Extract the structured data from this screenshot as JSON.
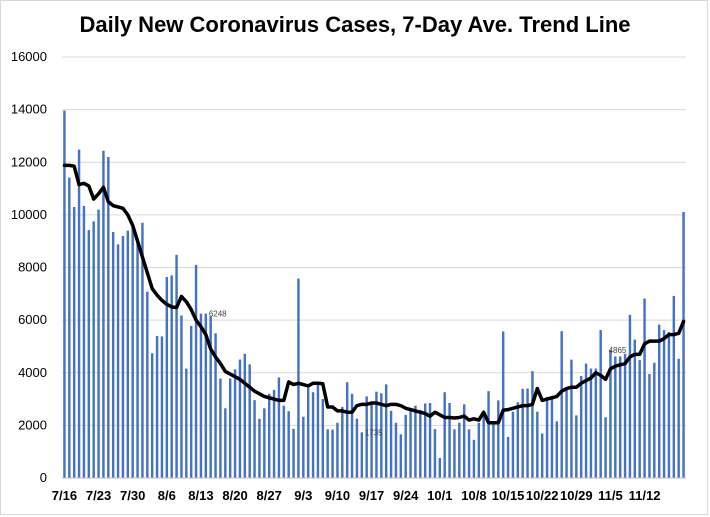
{
  "chart_data": {
    "type": "bar",
    "title": "Daily New Coronavirus Cases, 7-Day Ave. Trend Line",
    "xlabel": "",
    "ylabel": "",
    "ylim": [
      0,
      16000
    ],
    "yticks": [
      0,
      2000,
      4000,
      6000,
      8000,
      10000,
      12000,
      14000,
      16000
    ],
    "y_tick_labels": [
      "0",
      "2000",
      "4000",
      "6000",
      "8000",
      "10000",
      "12000",
      "14000",
      "16000"
    ],
    "x_tick_labels": [
      "7/16",
      "7/23",
      "7/30",
      "8/6",
      "8/13",
      "8/20",
      "8/27",
      "9/3",
      "9/10",
      "9/17",
      "9/24",
      "10/1",
      "10/8",
      "10/15",
      "10/22",
      "10/29",
      "11/5",
      "11/12"
    ],
    "x_tick_day_index": [
      0,
      7,
      14,
      21,
      28,
      35,
      42,
      49,
      56,
      63,
      70,
      77,
      84,
      91,
      98,
      105,
      112,
      119
    ],
    "grid": "horizontal",
    "colors": {
      "bars": "#4472c4",
      "trend_line": "#000000",
      "grid": "#d9d9d9"
    },
    "series": [
      {
        "type": "bar",
        "values": [
          13965,
          11420,
          10300,
          12480,
          10340,
          9420,
          9750,
          10200,
          12440,
          12200,
          9350,
          8880,
          9200,
          9400,
          9550,
          9000,
          9700,
          7080,
          4740,
          5400,
          5380,
          7640,
          7700,
          8480,
          6180,
          4160,
          5780,
          8100,
          6250,
          6248,
          6150,
          5500,
          3780,
          2650,
          3780,
          4130,
          4500,
          4720,
          4320,
          2960,
          2250,
          2650,
          3200,
          3350,
          3820,
          2750,
          2540,
          1870,
          7580,
          2330,
          3430,
          3260,
          3580,
          3000,
          1850,
          1840,
          2100,
          2700,
          3640,
          3200,
          2250,
          1735,
          3100,
          2850,
          3280,
          3220,
          3560,
          2550,
          2100,
          1660,
          2400,
          2550,
          2750,
          2580,
          2830,
          2850,
          1860,
          760,
          3260,
          2850,
          1850,
          2100,
          2800,
          1850,
          1450,
          2100,
          2450,
          3300,
          2150,
          2950,
          5570,
          1560,
          2520,
          2880,
          3390,
          3400,
          4060,
          2520,
          1690,
          3080,
          3000,
          2150,
          5580,
          3400,
          4500,
          2380,
          3880,
          4350,
          4160,
          4160,
          5620,
          2310,
          4865,
          4620,
          4620,
          4720,
          6200,
          5260,
          4480,
          6820,
          3950,
          4380,
          5830,
          5620,
          5550,
          6920,
          4530,
          10110
        ]
      },
      {
        "type": "line",
        "name": "",
        "values": [
          11880,
          11880,
          11850,
          11150,
          11200,
          11100,
          10600,
          10800,
          11050,
          10500,
          10350,
          10300,
          10250,
          10000,
          9600,
          9000,
          8400,
          7800,
          7200,
          6950,
          6750,
          6600,
          6500,
          6480,
          6900,
          6700,
          6400,
          6000,
          5750,
          5450,
          4900,
          4600,
          4350,
          4050,
          3950,
          3850,
          3750,
          3600,
          3450,
          3300,
          3200,
          3100,
          3050,
          3000,
          2950,
          2950,
          3650,
          3550,
          3600,
          3550,
          3500,
          3600,
          3600,
          3580,
          2700,
          2700,
          2550,
          2550,
          2500,
          2500,
          2750,
          2800,
          2800,
          2850,
          2850,
          2800,
          2750,
          2800,
          2800,
          2750,
          2650,
          2600,
          2550,
          2500,
          2450,
          2350,
          2500,
          2400,
          2300,
          2300,
          2280,
          2300,
          2350,
          2200,
          2250,
          2200,
          2500,
          2100,
          2100,
          2100,
          2580,
          2600,
          2650,
          2700,
          2750,
          2750,
          2800,
          3400,
          2950,
          3000,
          3050,
          3100,
          3300,
          3400,
          3450,
          3450,
          3600,
          3700,
          3800,
          4000,
          3900,
          3750,
          4150,
          4250,
          4300,
          4350,
          4600,
          4700,
          4700,
          5100,
          5200,
          5200,
          5200,
          5300,
          5450,
          5450,
          5500,
          5950
        ]
      }
    ],
    "data_labels": [
      {
        "day_index": 29,
        "value": 6248,
        "text": "6248"
      },
      {
        "day_index": 61,
        "value": 1735,
        "text": "1735"
      },
      {
        "day_index": 111,
        "value": 4865,
        "text": "4865"
      }
    ]
  }
}
